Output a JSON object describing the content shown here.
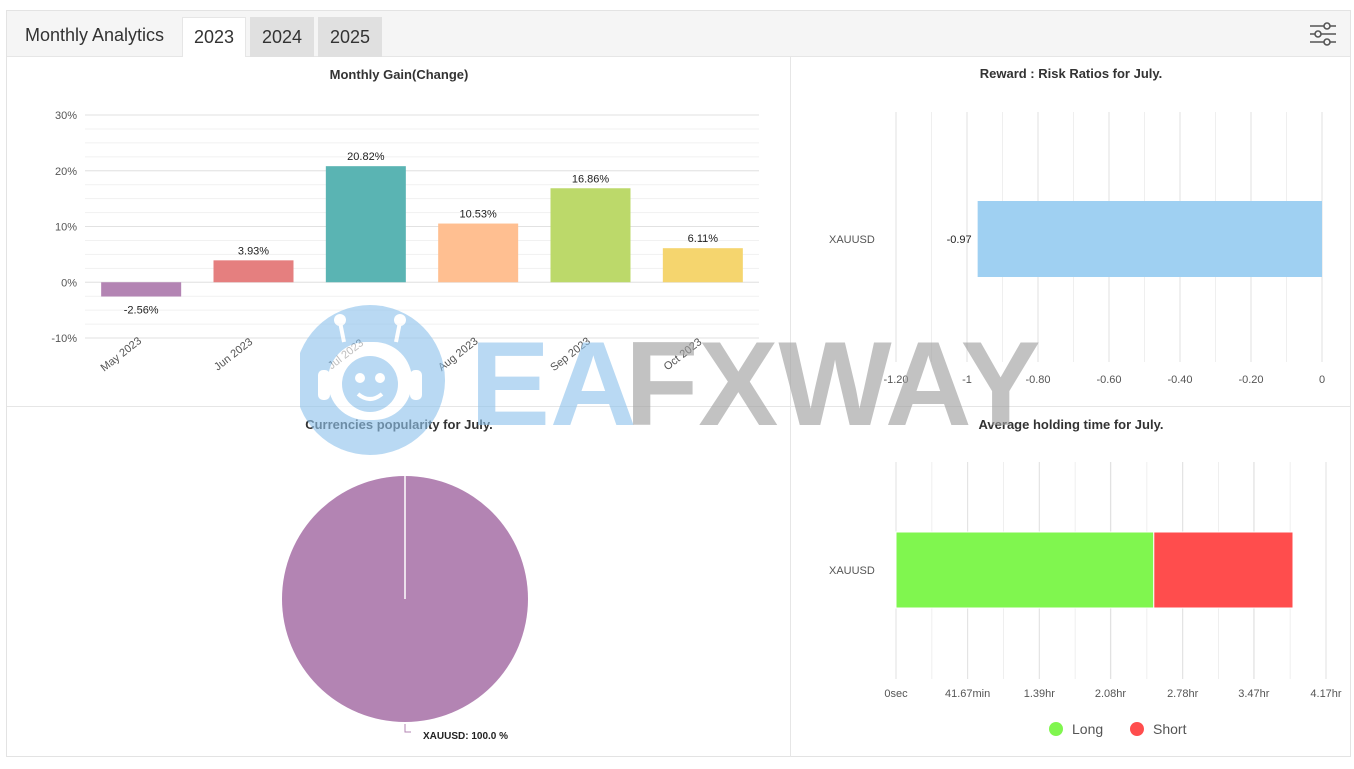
{
  "header": {
    "title": "Monthly Analytics",
    "tabs": [
      "2023",
      "2024",
      "2025"
    ],
    "active_tab": "2023"
  },
  "watermark": {
    "text_a": "EA",
    "text_b": "FXWAY"
  },
  "colors": {
    "header_bg": "#f5f5f5",
    "watermark_blue": "#8fc3ec",
    "watermark_gray": "#9e9e9e"
  },
  "chart_data": [
    {
      "id": "monthly_gain",
      "type": "bar",
      "title": "Monthly Gain(Change)",
      "categories": [
        "May 2023",
        "Jun 2023",
        "Jul 2023",
        "Aug 2023",
        "Sep 2023",
        "Oct 2023"
      ],
      "values": [
        -2.56,
        3.93,
        20.82,
        10.53,
        16.86,
        6.11
      ],
      "value_labels": [
        "-2.56%",
        "3.93%",
        "20.82%",
        "10.53%",
        "16.86%",
        "6.11%"
      ],
      "colors": [
        "#b384b3",
        "#e57f7f",
        "#5ab4b3",
        "#ffbf91",
        "#bcd96a",
        "#f5d56e"
      ],
      "ylim": [
        -10,
        30
      ],
      "yticks": [
        30,
        20,
        10,
        0,
        -10
      ],
      "ytick_labels": [
        "30%",
        "20%",
        "10%",
        "0%",
        "-10%"
      ],
      "grid": true
    },
    {
      "id": "reward_risk",
      "type": "bar",
      "orientation": "horizontal",
      "title": "Reward : Risk Ratios for July.",
      "categories": [
        "XAUUSD"
      ],
      "values": [
        -0.97
      ],
      "value_labels": [
        "-0.97"
      ],
      "colors": [
        "#9fd0f2"
      ],
      "xlim": [
        -1.2,
        0
      ],
      "xticks": [
        -1.2,
        -1.0,
        -0.8,
        -0.6,
        -0.4,
        -0.2,
        0
      ],
      "xtick_labels": [
        "-1.20",
        "-1",
        "-0.80",
        "-0.60",
        "-0.40",
        "-0.20",
        "0"
      ],
      "grid": true
    },
    {
      "id": "currency_popularity",
      "type": "pie",
      "title": "Currencies popularity for July.",
      "labels": [
        "XAUUSD"
      ],
      "values": [
        100.0
      ],
      "value_labels": [
        "XAUUSD: 100.0 %"
      ],
      "colors": [
        "#b384b3"
      ]
    },
    {
      "id": "holding_time",
      "type": "bar",
      "orientation": "horizontal",
      "stacked": true,
      "title": "Average holding time for July.",
      "categories": [
        "XAUUSD"
      ],
      "series": [
        {
          "name": "Long",
          "values": [
            2.5
          ],
          "color": "#80f64f"
        },
        {
          "name": "Short",
          "values": [
            1.35
          ],
          "color": "#ff4d4d"
        }
      ],
      "x_unit": "hours",
      "xlim": [
        0,
        4.17
      ],
      "xticks": [
        0,
        0.6945,
        1.39,
        2.08,
        2.78,
        3.47,
        4.17
      ],
      "xtick_labels": [
        "0sec",
        "41.67min",
        "1.39hr",
        "2.08hr",
        "2.78hr",
        "3.47hr",
        "4.17hr"
      ],
      "grid": true,
      "legend_position": "bottom-center"
    }
  ]
}
